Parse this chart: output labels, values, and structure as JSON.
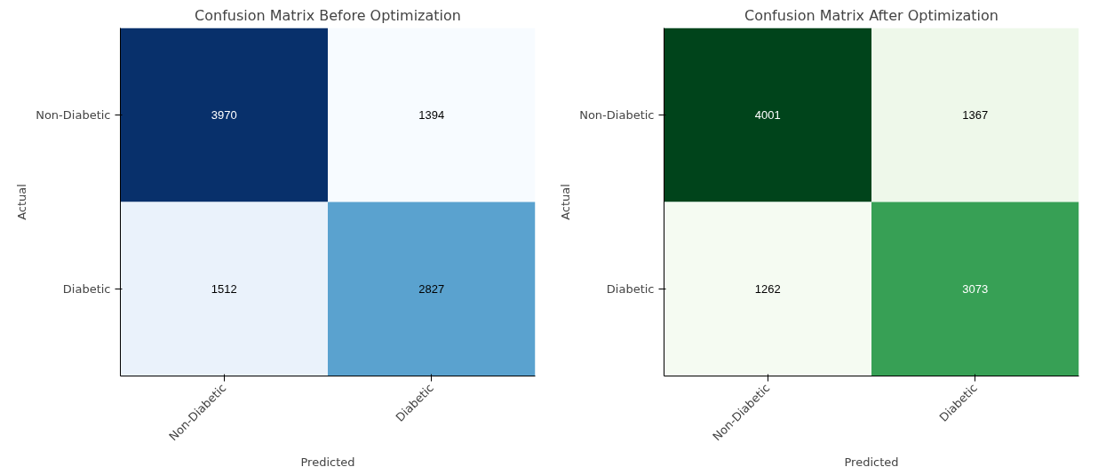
{
  "chart_data": [
    {
      "type": "heatmap",
      "title": "Confusion Matrix Before Optimization",
      "xlabel": "Predicted",
      "ylabel": "Actual",
      "categories": [
        "Non-Diabetic",
        "Diabetic"
      ],
      "y_categories": [
        "Non-Diabetic",
        "Diabetic"
      ],
      "cells": [
        [
          3970,
          1394
        ],
        [
          1512,
          2827
        ]
      ],
      "colors": [
        "#08306b",
        "#f7fbff",
        "#eaf2fb",
        "#5aa2cf"
      ],
      "data_labels": true,
      "grid": false
    },
    {
      "type": "heatmap",
      "title": "Confusion Matrix After Optimization",
      "xlabel": "Predicted",
      "ylabel": "Actual",
      "categories": [
        "Non-Diabetic",
        "Diabetic"
      ],
      "y_categories": [
        "Non-Diabetic",
        "Diabetic"
      ],
      "cells": [
        [
          4001,
          1367
        ],
        [
          1262,
          3073
        ]
      ],
      "colors": [
        "#00441b",
        "#eef8ea",
        "#f5fbf2",
        "#37a055"
      ],
      "data_labels": true,
      "grid": false
    }
  ]
}
